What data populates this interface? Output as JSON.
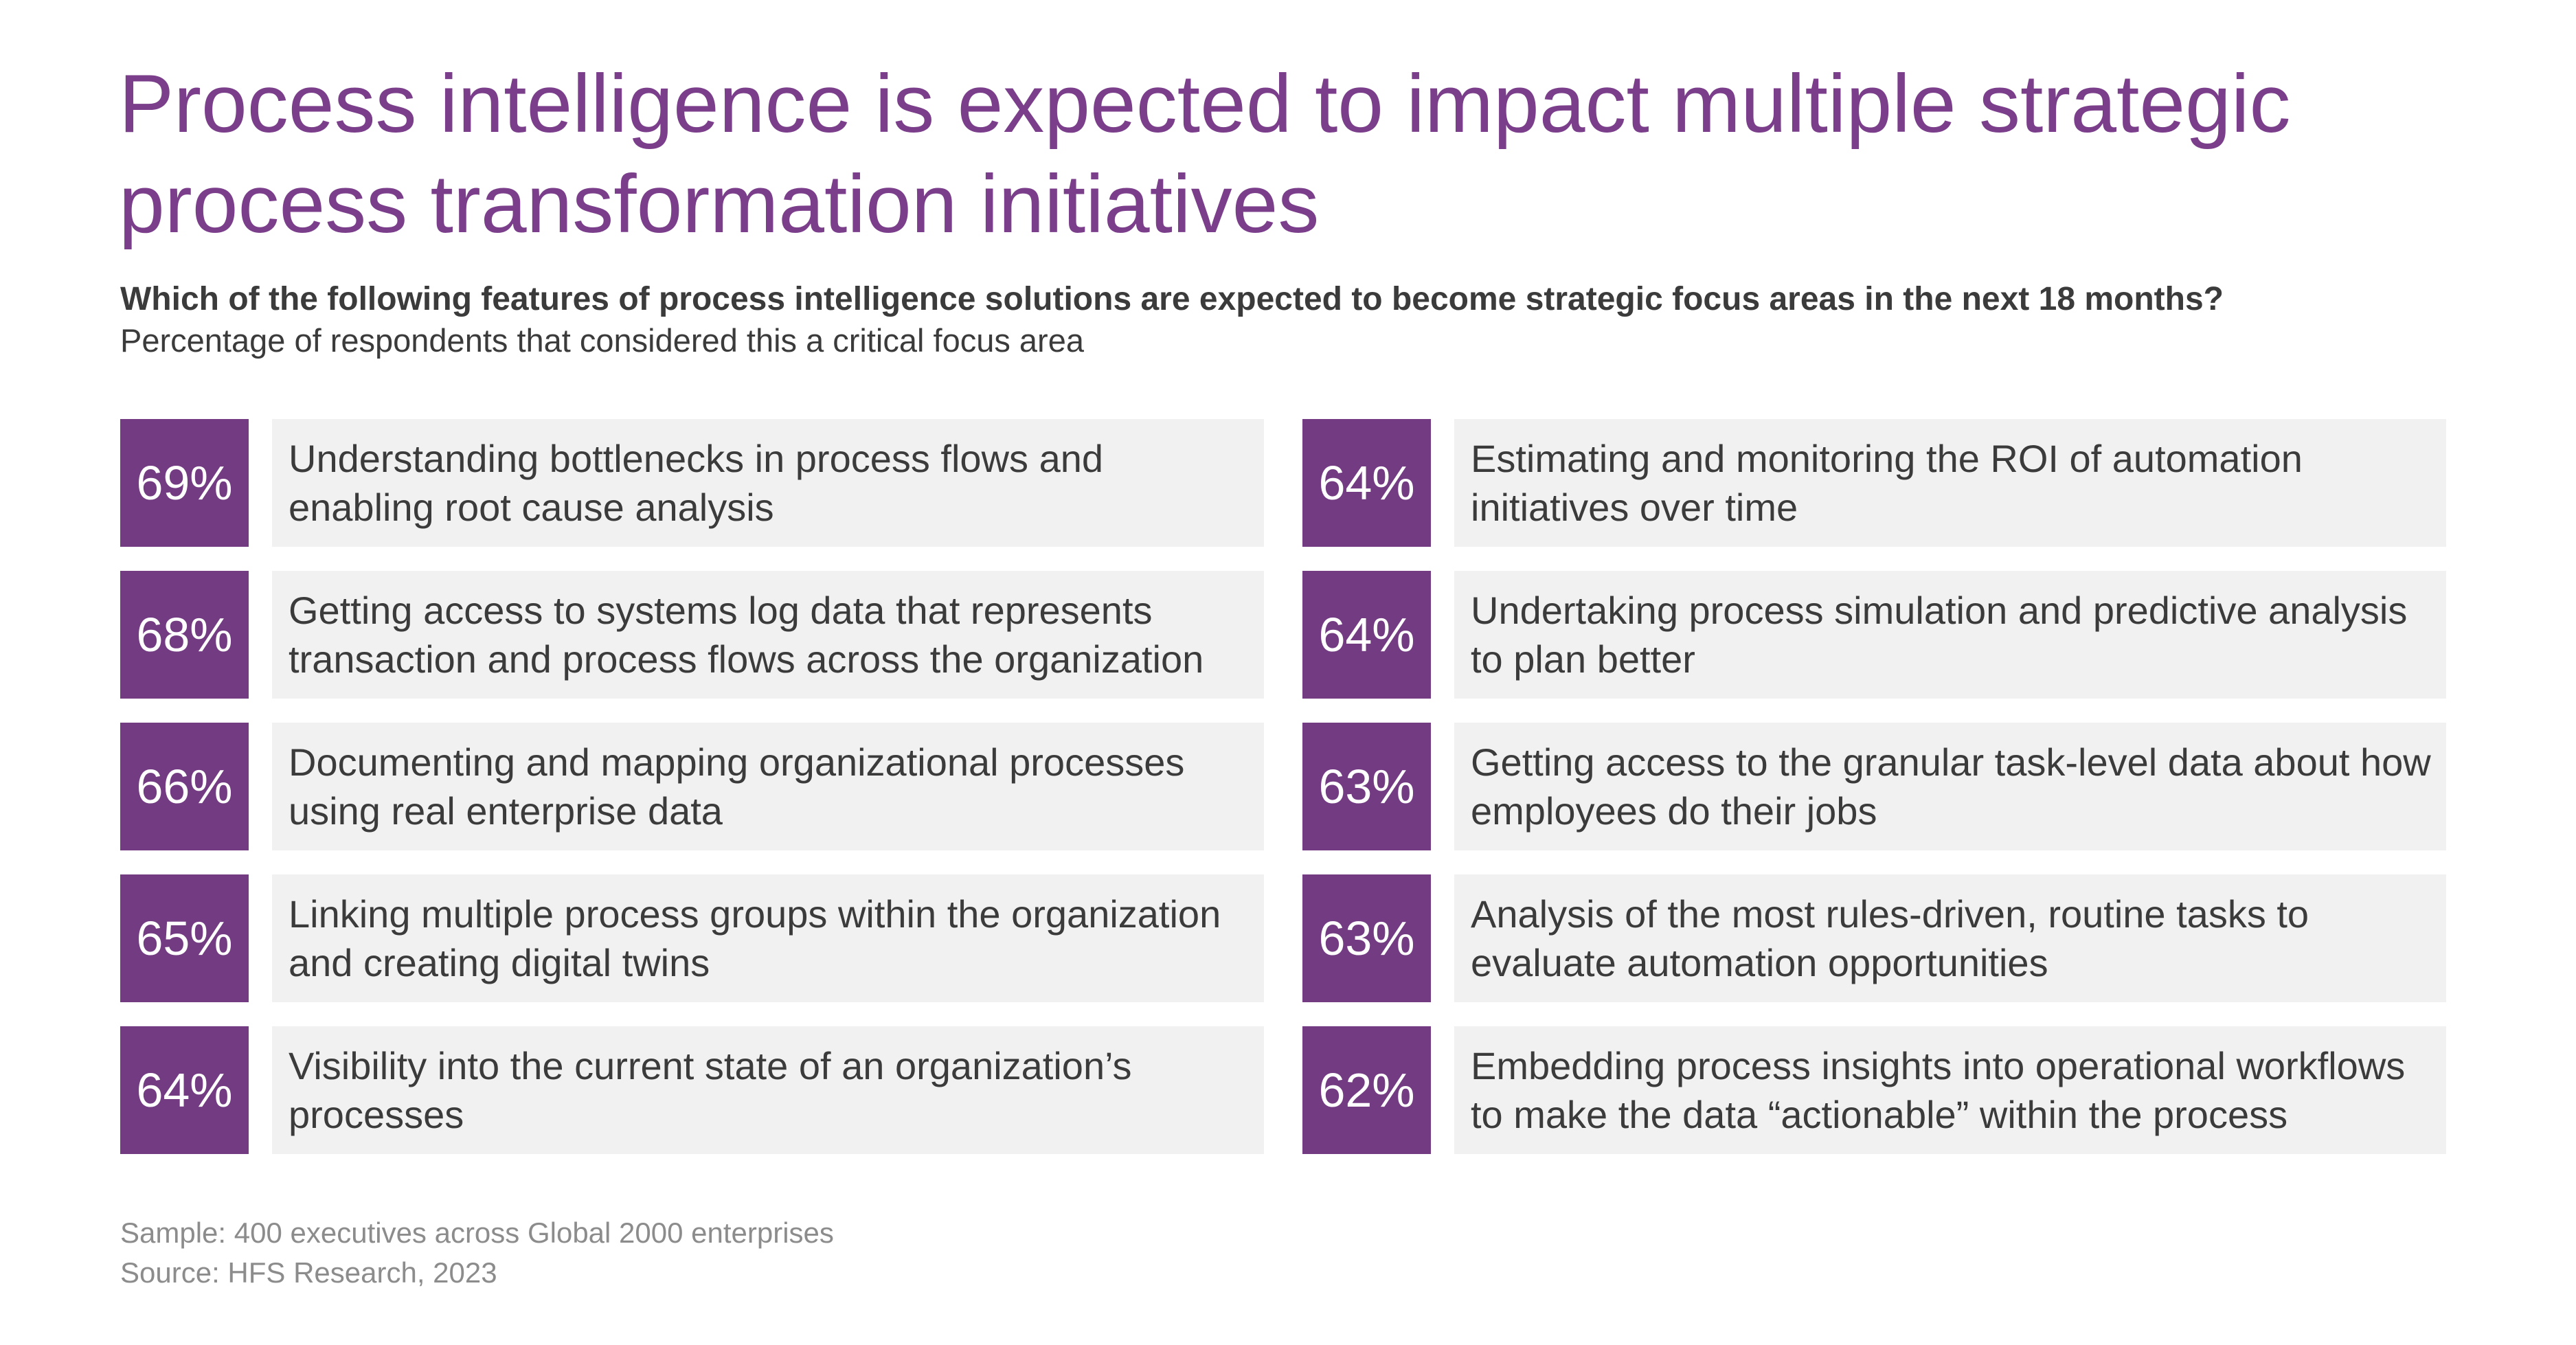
{
  "title": "Process intelligence is expected to impact multiple strategic process transformation initiatives",
  "question": "Which of the following features of process intelligence solutions are expected to become strategic focus areas in the next 18 months?",
  "subquestion": "Percentage of respondents that considered this a critical focus area",
  "colors": {
    "accent": "#733c82",
    "title": "#7a3e8a",
    "label_bg": "#f1f1f1",
    "text": "#3b3b3b",
    "footer": "#8c8c8c"
  },
  "chart_data": {
    "type": "table",
    "title": "Process intelligence is expected to impact multiple strategic process transformation initiatives",
    "items": [
      {
        "value": "69%",
        "label": "Understanding bottlenecks in process flows and enabling root cause analysis"
      },
      {
        "value": "68%",
        "label": "Getting access to systems log data that represents transaction and process flows across the organization"
      },
      {
        "value": "66%",
        "label": "Documenting and mapping organizational processes using real enterprise data"
      },
      {
        "value": "65%",
        "label": "Linking multiple process groups within the organization and creating digital twins"
      },
      {
        "value": "64%",
        "label": "Visibility into the current state of an organization’s processes"
      },
      {
        "value": "64%",
        "label": "Estimating and monitoring the ROI of automation initiatives over time"
      },
      {
        "value": "64%",
        "label": "Undertaking process simulation and predictive analysis to plan better"
      },
      {
        "value": "63%",
        "label": "Getting access to the granular task-level data about how employees do their jobs"
      },
      {
        "value": "63%",
        "label": "Analysis of the most rules-driven, routine tasks to evaluate automation opportunities"
      },
      {
        "value": "62%",
        "label": "Embedding process insights into operational workflows to make the data “actionable” within the process"
      }
    ]
  },
  "footer": {
    "sample": "Sample: 400 executives across Global 2000 enterprises",
    "source": "Source: HFS Research, 2023"
  }
}
